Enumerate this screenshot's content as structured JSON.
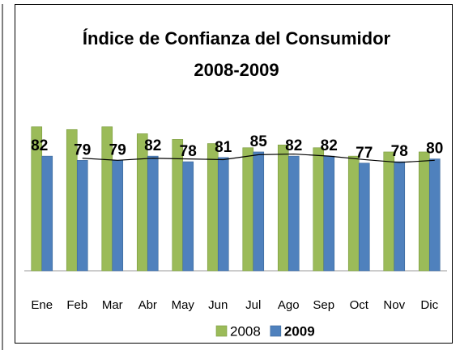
{
  "chart_data": {
    "type": "bar",
    "title": [
      "Índice de Confianza del Consumidor",
      "2008-2009"
    ],
    "categories": [
      "Ene",
      "Feb",
      "Mar",
      "Abr",
      "May",
      "Jun",
      "Jul",
      "Ago",
      "Sep",
      "Oct",
      "Nov",
      "Dic"
    ],
    "series": [
      {
        "name": "2008",
        "color": "#9bbb59",
        "values": [
          103,
          101,
          103,
          98,
          94,
          91,
          88,
          90,
          88,
          82,
          85,
          85
        ]
      },
      {
        "name": "2009",
        "color": "#4f81bd",
        "values": [
          82,
          79,
          79,
          82,
          78,
          81,
          85,
          82,
          82,
          77,
          78,
          80
        ]
      }
    ],
    "trend_values": [
      null,
      80.5,
      79,
      80.5,
      80,
      79.5,
      83,
      83.5,
      82,
      79.5,
      77.5,
      79
    ],
    "trend_color": "#000000",
    "ylim": [
      0,
      110
    ]
  }
}
